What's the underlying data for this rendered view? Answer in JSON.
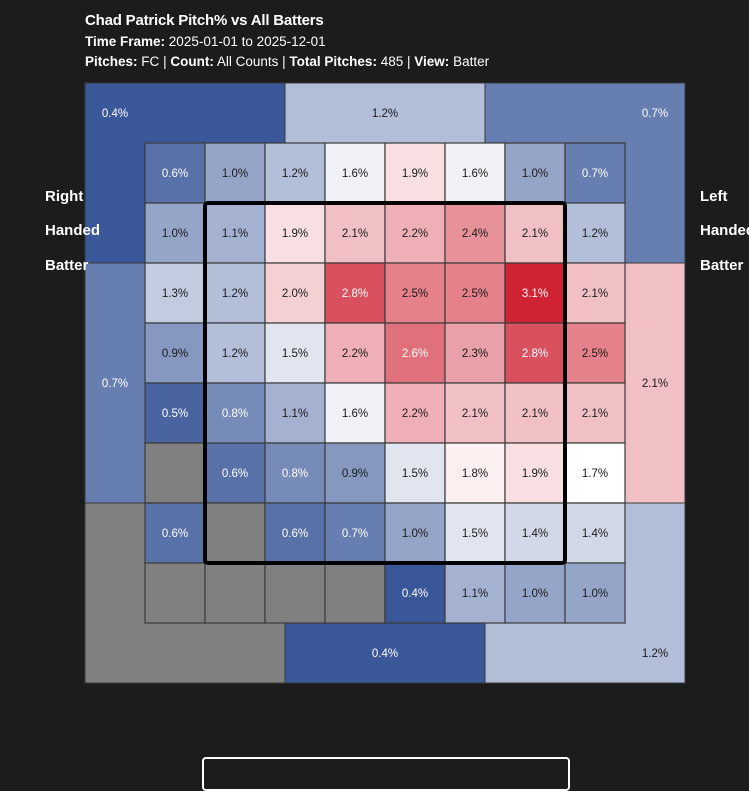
{
  "header": {
    "title": "Chad Patrick Pitch% vs All Batters",
    "time_frame_label": "Time Frame:",
    "time_frame_value": "2025-01-01 to 2025-12-01",
    "pitches_label": "Pitches:",
    "pitches_value": "FC",
    "count_label": "Count:",
    "count_value": "All Counts",
    "total_label": "Total Pitches:",
    "total_value": "485",
    "view_label": "View:",
    "view_value": "Batter",
    "separator": "|"
  },
  "side_labels": {
    "left": "Right\n\nHanded\n\nBatter",
    "right": "Left\n\nHanded\n\nBatter"
  },
  "colors": {
    "background": "#1c1c1c",
    "low": "#3a5799",
    "mid": "#ffffff",
    "high": "#cf2233",
    "missing": "#808080",
    "strike_zone": "#000000"
  },
  "chart_data": {
    "type": "heatmap",
    "unit": "%",
    "color_scale": {
      "min": 0.4,
      "mid": 1.7,
      "max": 3.1
    },
    "outer_zones": [
      {
        "zone": "top-left",
        "value": 0.4
      },
      {
        "zone": "top",
        "value": 1.2
      },
      {
        "zone": "top-right",
        "value": 0.7
      },
      {
        "zone": "left",
        "value": 0.7
      },
      {
        "zone": "right",
        "value": 2.1
      },
      {
        "zone": "bottom-left",
        "value": null
      },
      {
        "zone": "bottom",
        "value": 0.4
      },
      {
        "zone": "bottom-right",
        "value": 1.2
      }
    ],
    "grid": [
      [
        0.6,
        1.0,
        1.2,
        1.6,
        1.9,
        1.6,
        1.0,
        0.7
      ],
      [
        1.0,
        1.1,
        1.9,
        2.1,
        2.2,
        2.4,
        2.1,
        1.2
      ],
      [
        1.3,
        1.2,
        2.0,
        2.8,
        2.5,
        2.5,
        3.1,
        2.1
      ],
      [
        0.9,
        1.2,
        1.5,
        2.2,
        2.6,
        2.3,
        2.8,
        2.5
      ],
      [
        0.5,
        0.8,
        1.1,
        1.6,
        2.2,
        2.1,
        2.1,
        2.1
      ],
      [
        null,
        0.6,
        0.8,
        0.9,
        1.5,
        1.8,
        1.9,
        1.7
      ],
      [
        0.6,
        null,
        0.6,
        0.7,
        1.0,
        1.5,
        1.4,
        1.4
      ],
      [
        null,
        null,
        null,
        null,
        0.4,
        1.1,
        1.0,
        1.0
      ]
    ],
    "strike_zone": {
      "rows": [
        1,
        6
      ],
      "cols": [
        1,
        6
      ]
    }
  }
}
